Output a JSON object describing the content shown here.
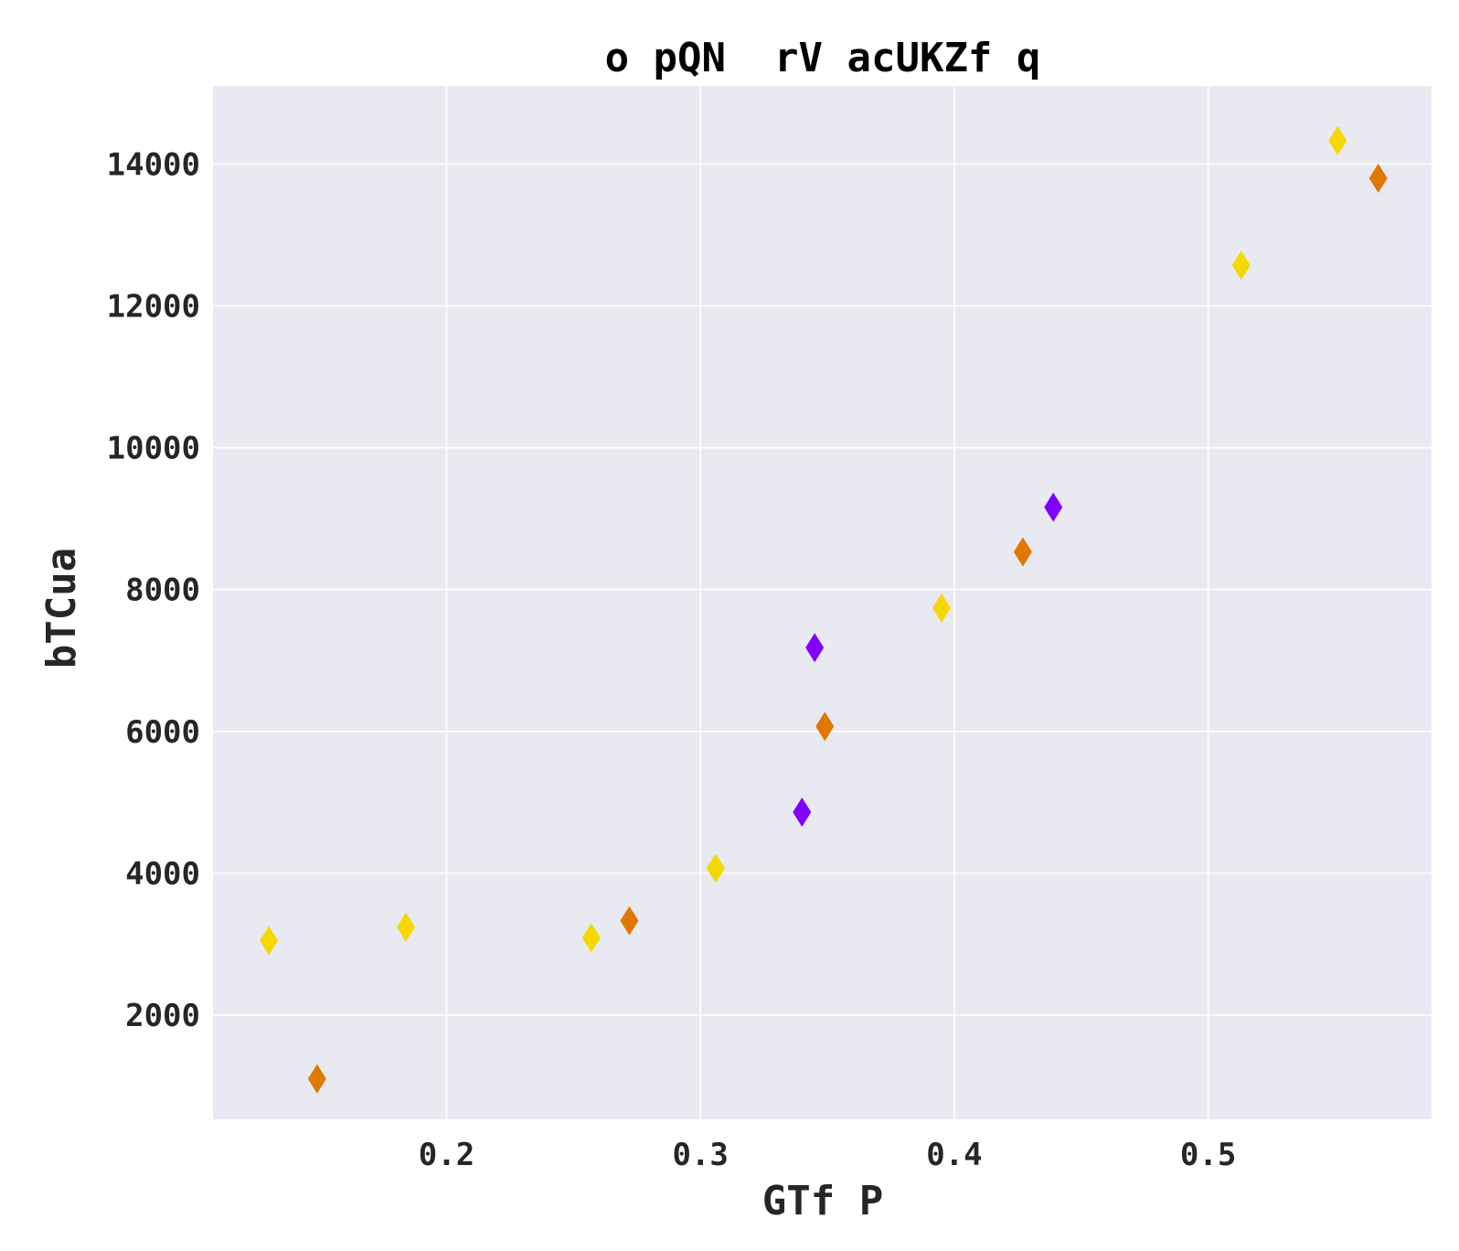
{
  "chart_data": {
    "type": "scatter",
    "title": "o pQN  rV acUKZf q",
    "xlabel": "GTf P",
    "ylabel": "bTCua",
    "xlim": [
      0.108,
      0.588
    ],
    "ylim": [
      530,
      15100
    ],
    "x_ticks": [
      0.2,
      0.3,
      0.4,
      0.5
    ],
    "x_tick_labels": [
      "0.2",
      "0.3",
      "0.4",
      "0.5"
    ],
    "y_ticks": [
      2000,
      4000,
      6000,
      8000,
      10000,
      12000,
      14000
    ],
    "y_tick_labels": [
      "2000",
      "4000",
      "6000",
      "8000",
      "10000",
      "12000",
      "14000"
    ],
    "grid": true,
    "background": "#e9e9f1",
    "marker": "diamond",
    "series": [
      {
        "color": "#f5d800",
        "points": [
          {
            "x": 0.13,
            "y": 3050
          },
          {
            "x": 0.184,
            "y": 3240
          },
          {
            "x": 0.257,
            "y": 3090
          },
          {
            "x": 0.306,
            "y": 4070
          },
          {
            "x": 0.395,
            "y": 7740
          },
          {
            "x": 0.513,
            "y": 12570
          },
          {
            "x": 0.551,
            "y": 14330
          }
        ]
      },
      {
        "color": "#e07800",
        "points": [
          {
            "x": 0.149,
            "y": 1100
          },
          {
            "x": 0.272,
            "y": 3330
          },
          {
            "x": 0.349,
            "y": 6070
          },
          {
            "x": 0.427,
            "y": 8530
          },
          {
            "x": 0.567,
            "y": 13800
          }
        ]
      },
      {
        "color": "#8000ff",
        "points": [
          {
            "x": 0.34,
            "y": 4860
          },
          {
            "x": 0.345,
            "y": 7180
          },
          {
            "x": 0.439,
            "y": 9160
          }
        ]
      }
    ]
  }
}
